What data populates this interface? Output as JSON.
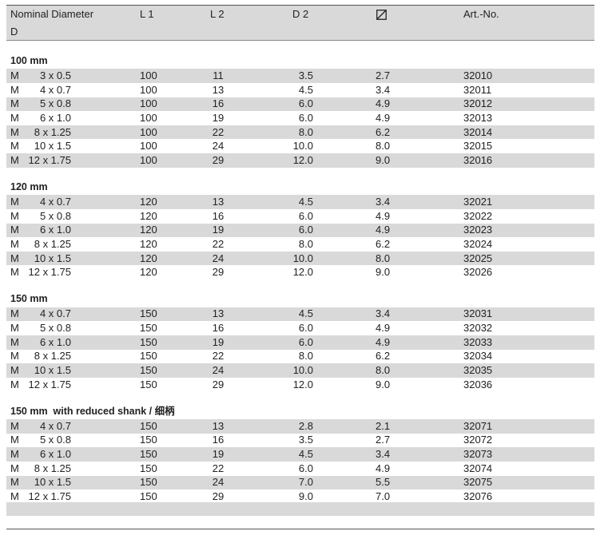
{
  "header": {
    "columns": [
      "Nominal Diameter",
      "L 1",
      "L 2",
      "D 2",
      "Art.-No."
    ],
    "second_line": "D"
  },
  "sections": [
    {
      "title": "100 mm",
      "rows": [
        [
          "M",
          "3 x 0.5",
          "100",
          "11",
          "3.5",
          "2.7",
          "32010"
        ],
        [
          "M",
          "4 x 0.7",
          "100",
          "13",
          "4.5",
          "3.4",
          "32011"
        ],
        [
          "M",
          "5 x 0.8",
          "100",
          "16",
          "6.0",
          "4.9",
          "32012"
        ],
        [
          "M",
          "6 x 1.0",
          "100",
          "19",
          "6.0",
          "4.9",
          "32013"
        ],
        [
          "M",
          "8 x 1.25",
          "100",
          "22",
          "8.0",
          "6.2",
          "32014"
        ],
        [
          "M",
          "10 x 1.5",
          "100",
          "24",
          "10.0",
          "8.0",
          "32015"
        ],
        [
          "M",
          "12 x 1.75",
          "100",
          "29",
          "12.0",
          "9.0",
          "32016"
        ]
      ]
    },
    {
      "title": "120 mm",
      "rows": [
        [
          "M",
          "4 x 0.7",
          "120",
          "13",
          "4.5",
          "3.4",
          "32021"
        ],
        [
          "M",
          "5 x 0.8",
          "120",
          "16",
          "6.0",
          "4.9",
          "32022"
        ],
        [
          "M",
          "6 x 1.0",
          "120",
          "19",
          "6.0",
          "4.9",
          "32023"
        ],
        [
          "M",
          "8 x 1.25",
          "120",
          "22",
          "8.0",
          "6.2",
          "32024"
        ],
        [
          "M",
          "10 x 1.5",
          "120",
          "24",
          "10.0",
          "8.0",
          "32025"
        ],
        [
          "M",
          "12 x 1.75",
          "120",
          "29",
          "12.0",
          "9.0",
          "32026"
        ]
      ]
    },
    {
      "title": "150 mm",
      "rows": [
        [
          "M",
          "4 x 0.7",
          "150",
          "13",
          "4.5",
          "3.4",
          "32031"
        ],
        [
          "M",
          "5 x 0.8",
          "150",
          "16",
          "6.0",
          "4.9",
          "32032"
        ],
        [
          "M",
          "6 x 1.0",
          "150",
          "19",
          "6.0",
          "4.9",
          "32033"
        ],
        [
          "M",
          "8 x 1.25",
          "150",
          "22",
          "8.0",
          "6.2",
          "32034"
        ],
        [
          "M",
          "10 x 1.5",
          "150",
          "24",
          "10.0",
          "8.0",
          "32035"
        ],
        [
          "M",
          "12 x 1.75",
          "150",
          "29",
          "12.0",
          "9.0",
          "32036"
        ]
      ]
    },
    {
      "title": "150 mm  with reduced shank / 细柄",
      "rows": [
        [
          "M",
          "4 x 0.7",
          "150",
          "13",
          "2.8",
          "2.1",
          "32071"
        ],
        [
          "M",
          "5 x 0.8",
          "150",
          "16",
          "3.5",
          "2.7",
          "32072"
        ],
        [
          "M",
          "6 x 1.0",
          "150",
          "19",
          "4.5",
          "3.4",
          "32073"
        ],
        [
          "M",
          "8 x 1.25",
          "150",
          "22",
          "6.0",
          "4.9",
          "32074"
        ],
        [
          "M",
          "10 x 1.5",
          "150",
          "24",
          "7.0",
          "5.5",
          "32075"
        ],
        [
          "M",
          "12 x 1.75",
          "150",
          "29",
          "9.0",
          "7.0",
          "32076"
        ]
      ]
    }
  ]
}
